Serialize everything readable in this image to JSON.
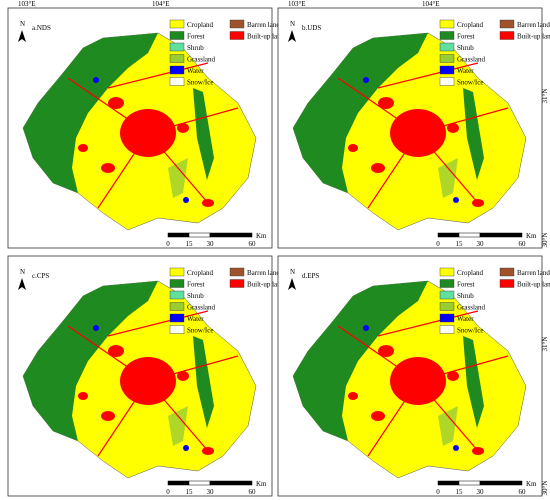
{
  "lon_labels": [
    "103°E",
    "104°E"
  ],
  "lat_labels": [
    "31°N",
    "30°N"
  ],
  "north": "N",
  "panels": [
    {
      "label": "a.NDS"
    },
    {
      "label": "b.UDS"
    },
    {
      "label": "c.CPS"
    },
    {
      "label": "d.EPS"
    }
  ],
  "legend": [
    {
      "name": "Cropland",
      "color": "#ffff00"
    },
    {
      "name": "Forest",
      "color": "#1f8a1f"
    },
    {
      "name": "Shrub",
      "color": "#5fe0a0"
    },
    {
      "name": "Grassland",
      "color": "#9acd32"
    },
    {
      "name": "Water",
      "color": "#0000ff"
    },
    {
      "name": "Snow/Ice",
      "color": "#ffffff"
    },
    {
      "name": "Barren land",
      "color": "#a0522d"
    },
    {
      "name": "Built-up land",
      "color": "#ff0000"
    }
  ],
  "scale": {
    "ticks": [
      "0",
      "15",
      "30",
      "60"
    ],
    "unit": "Km"
  }
}
